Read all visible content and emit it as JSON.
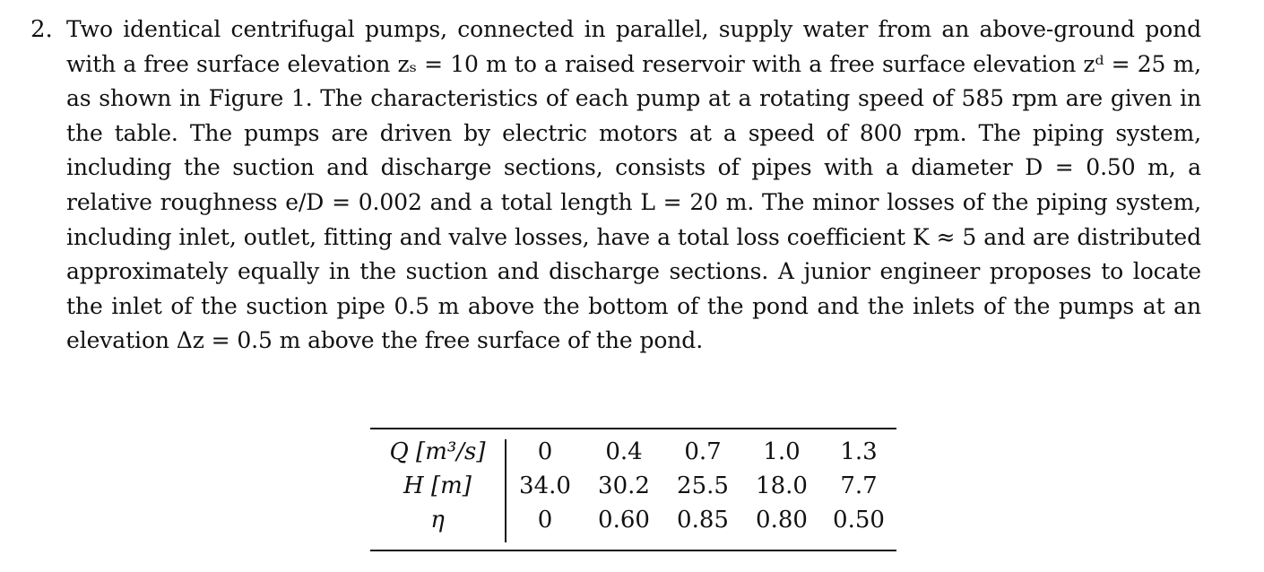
{
  "problem": {
    "number": "2.",
    "text": "Two identical centrifugal pumps, connected in parallel, supply water from an above-ground pond with a free surface elevation zₛ = 10 m to a raised reservoir with a free surface elevation zᵈ = 25 m, as shown in Figure 1. The characteristics of each pump at a rotating speed of 585 rpm are given in the table. The pumps are driven by electric motors at a speed of 800 rpm. The piping system, including the suction and discharge sections, consists of pipes with a diameter D = 0.50 m, a relative roughness e/D = 0.002 and a total length L = 20 m. The minor losses of the piping system, including inlet, outlet, fitting and valve losses, have a total loss coefficient K ≈ 5 and are distributed approximately equally in the suction and discharge sections. A junior engineer proposes to locate the inlet of the suction pipe 0.5 m above the bottom of the pond and the inlets of the pumps at an elevation Δz = 0.5 m above the free surface of the pond."
  },
  "table": {
    "rows": [
      {
        "label": "Q [m³/s]",
        "values": [
          "0",
          "0.4",
          "0.7",
          "1.0",
          "1.3"
        ]
      },
      {
        "label": "H [m]",
        "values": [
          "34.0",
          "30.2",
          "25.5",
          "18.0",
          "7.7"
        ]
      },
      {
        "label": "η",
        "values": [
          "0",
          "0.60",
          "0.85",
          "0.80",
          "0.50"
        ]
      }
    ]
  }
}
